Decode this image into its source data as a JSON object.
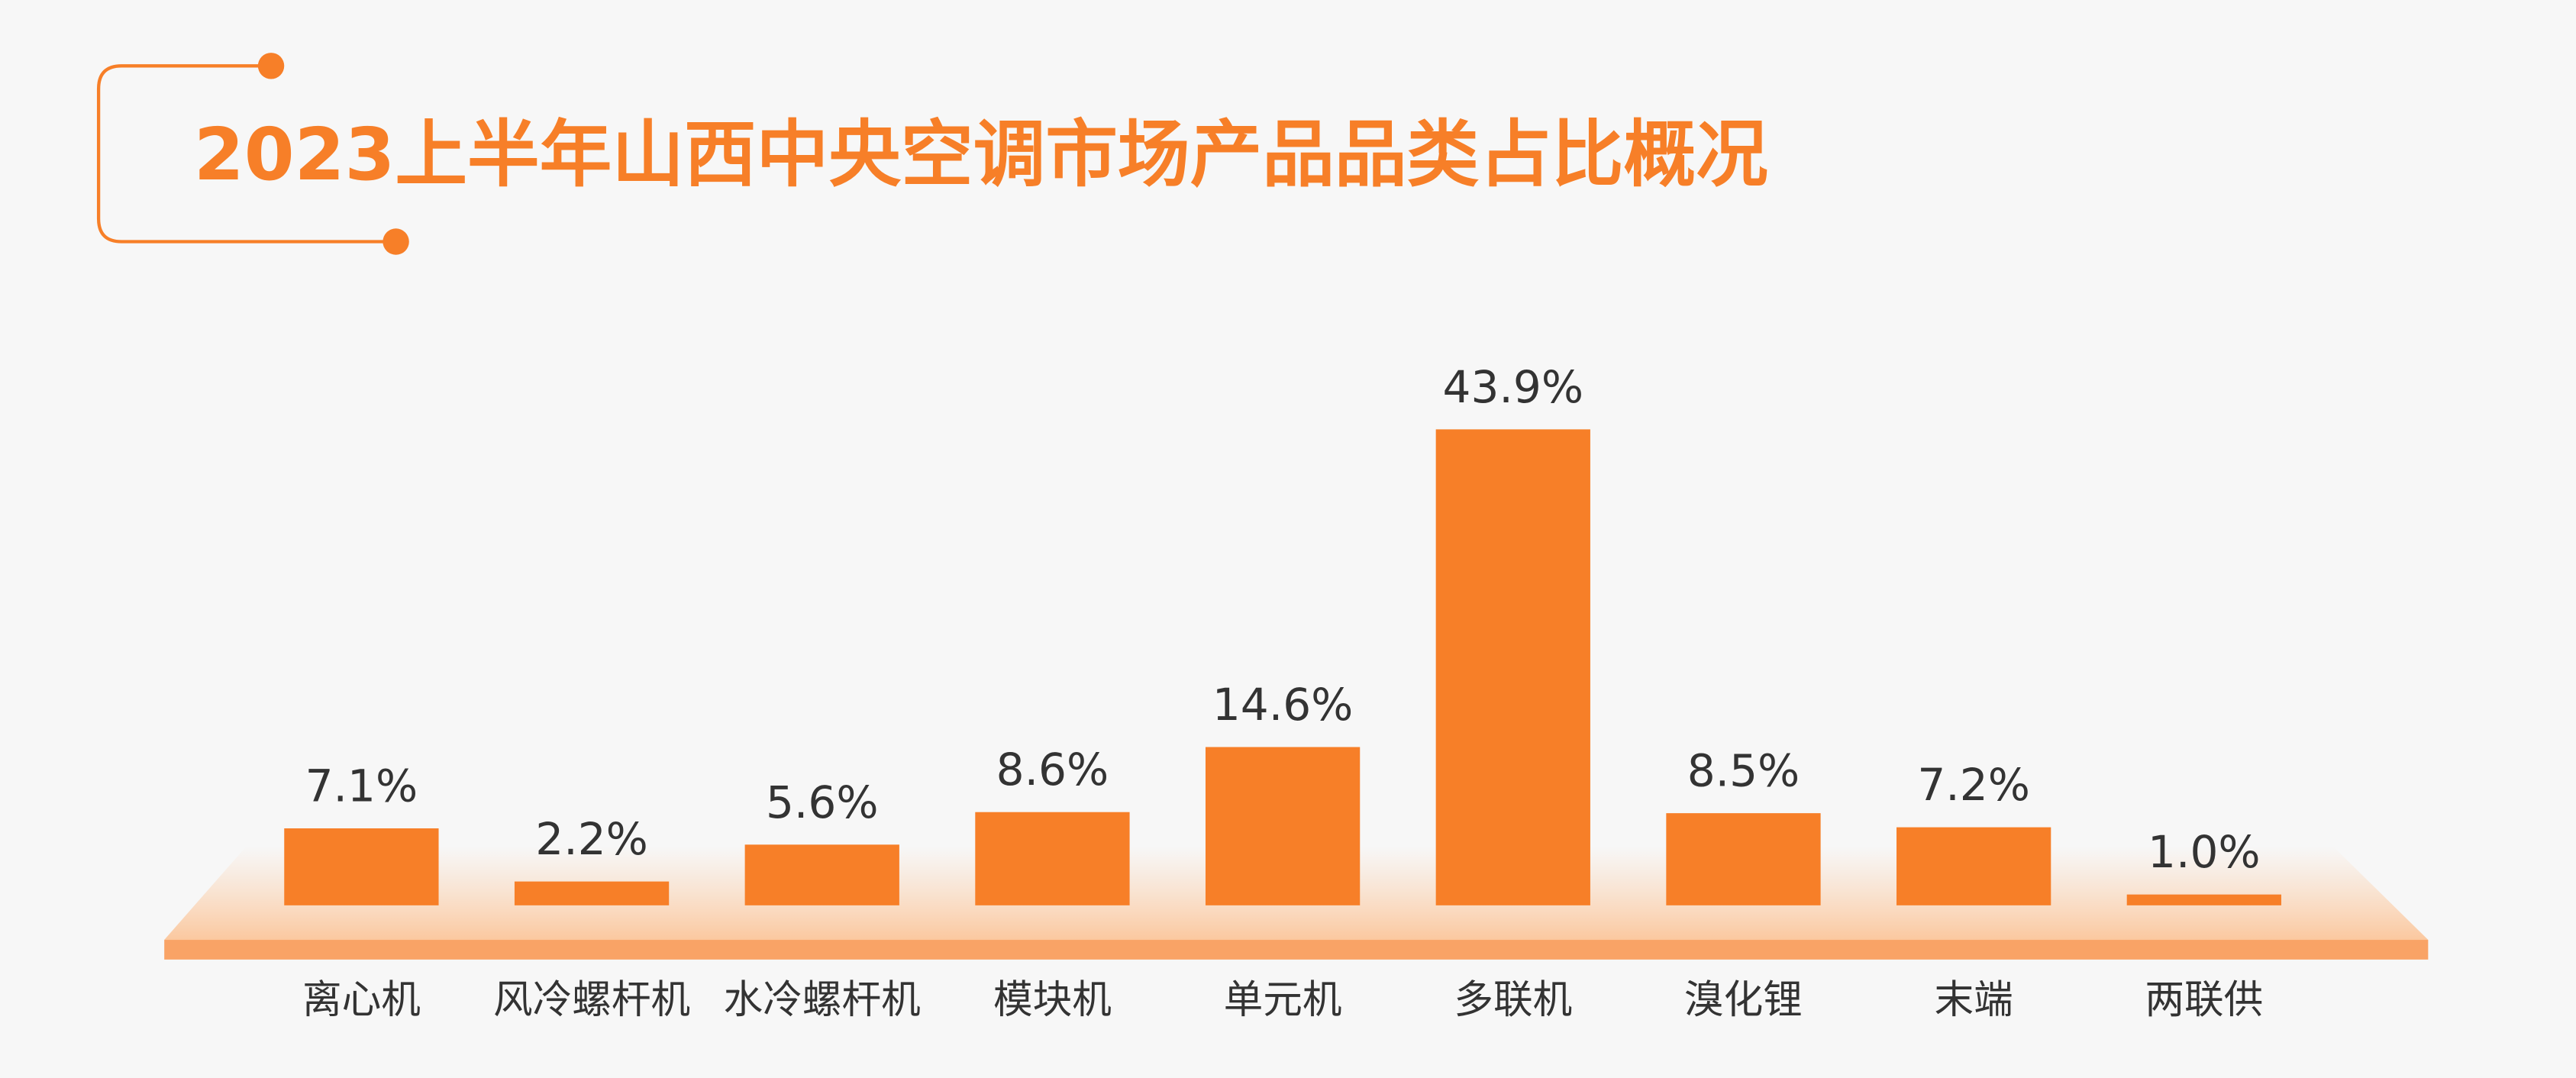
{
  "chart_data": {
    "type": "bar",
    "title": "2023上半年山西中央空调市场产品品类占比概况",
    "categories": [
      "离心机",
      "风冷螺杆机",
      "水冷螺杆机",
      "模块机",
      "单元机",
      "多联机",
      "溴化锂",
      "末端",
      "两联供"
    ],
    "values": [
      7.1,
      2.2,
      5.6,
      8.6,
      14.6,
      43.9,
      8.5,
      7.2,
      1.0
    ],
    "value_labels": [
      "7.1%",
      "2.2%",
      "5.6%",
      "8.6%",
      "14.6%",
      "43.9%",
      "8.5%",
      "7.2%",
      "1.0%"
    ],
    "color": "#f77f28"
  }
}
